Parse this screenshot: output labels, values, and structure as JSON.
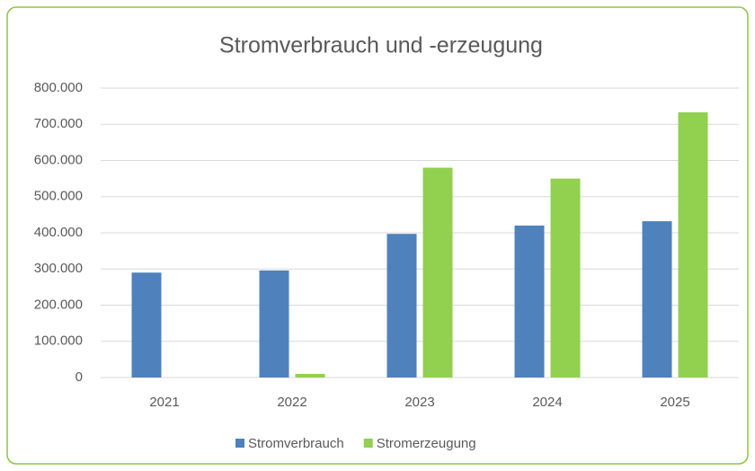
{
  "chart_data": {
    "type": "bar",
    "title": "Stromverbrauch und -erzeugung",
    "categories": [
      "2021",
      "2022",
      "2023",
      "2024",
      "2025"
    ],
    "series": [
      {
        "name": "Stromverbrauch",
        "color": "#4f81bd",
        "values": [
          290000,
          296000,
          397000,
          420000,
          432000
        ]
      },
      {
        "name": "Stromerzeugung",
        "color": "#92d050",
        "values": [
          0,
          10000,
          580000,
          550000,
          733000
        ]
      }
    ],
    "ylim": [
      0,
      800000
    ],
    "yticks": [
      0,
      {
        "value": 100000,
        "label": "100.000"
      },
      {
        "value": 200000,
        "label": "200.000"
      },
      {
        "value": 300000,
        "label": "300.000"
      },
      {
        "value": 400000,
        "label": "400.000"
      },
      {
        "value": 500000,
        "label": "500.000"
      },
      {
        "value": 600000,
        "label": "600.000"
      },
      {
        "value": 700000,
        "label": "700.000"
      },
      {
        "value": 800000,
        "label": "800.000"
      }
    ],
    "grid": true,
    "legend": "bottom"
  }
}
